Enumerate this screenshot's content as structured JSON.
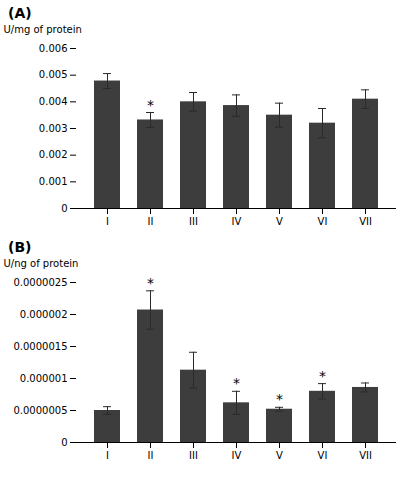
{
  "chart_data": [
    {
      "type": "bar",
      "title": "(A)",
      "categories": [
        "I",
        "II",
        "III",
        "IV",
        "V",
        "VI",
        "VII"
      ],
      "values": [
        0.00478,
        0.00332,
        0.004,
        0.00386,
        0.0035,
        0.0032,
        0.0041
      ],
      "errors": [
        0.00028,
        0.00028,
        0.00035,
        0.0004,
        0.00045,
        0.00055,
        0.00035
      ],
      "annotations": [
        {
          "category": "II",
          "text": "*"
        }
      ],
      "ylabel": "U/mg of protein",
      "ylim": [
        0,
        0.006
      ],
      "yticks": [
        0,
        0.001,
        0.002,
        0.003,
        0.004,
        0.005,
        0.006
      ],
      "color": "#3d3d3d"
    },
    {
      "type": "bar",
      "title": "(B)",
      "categories": [
        "I",
        "II",
        "III",
        "IV",
        "V",
        "VI",
        "VII"
      ],
      "values": [
        5e-07,
        2.07e-06,
        1.13e-06,
        6.2e-07,
        5.2e-07,
        8e-07,
        8.6e-07
      ],
      "errors": [
        6e-08,
        3e-07,
        2.8e-07,
        1.8e-07,
        3e-08,
        1.2e-07,
        7e-08
      ],
      "annotations": [
        {
          "category": "II",
          "text": "*"
        },
        {
          "category": "IV",
          "text": "*"
        },
        {
          "category": "V",
          "text": "*"
        },
        {
          "category": "VI",
          "text": "*"
        }
      ],
      "ylabel": "U/ng of protein",
      "ylim": [
        0,
        2.5e-06
      ],
      "yticks": [
        0,
        {
          "value": 5e-07,
          "label": "0.0000005"
        },
        {
          "value": 1e-06,
          "label": "0.000001"
        },
        {
          "value": 1.5e-06,
          "label": "0.0000015"
        },
        {
          "value": 2e-06,
          "label": "0.000002"
        },
        {
          "value": 2.5e-06,
          "label": "0.0000025"
        }
      ],
      "color": "#3d3d3d"
    }
  ]
}
